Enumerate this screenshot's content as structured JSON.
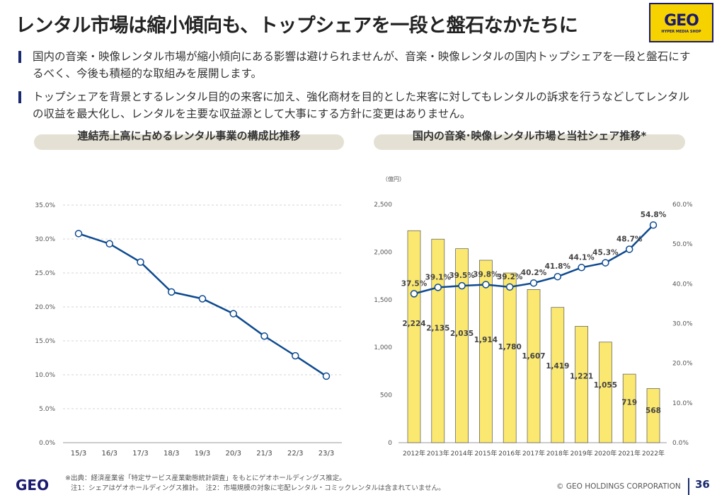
{
  "title": "レンタル市場は縮小傾向も、トップシェアを一段と盤石なかたちに",
  "logo": {
    "mark": "GEO",
    "sub": "HYPER MEDIA SHOP"
  },
  "bullets": [
    "国内の音楽・映像レンタル市場が縮小傾向にある影響は避けられませんが、音楽・映像レンタルの国内トップシェアを一段と盤石にするべく、今後も積極的な取組みを展開します。",
    "トップシェアを背景とするレンタル目的の来客に加え、強化商材を目的とした来客に対してもレンタルの訴求を行うなどしてレンタルの収益を最大化し、レンタルを主要な収益源として大事にする方針に変更はありません。"
  ],
  "sections": [
    "連結売上高に占めるレンタル事業の構成比推移",
    "国内の音楽･映像レンタル市場と当社シェア推移*"
  ],
  "chart_data": [
    {
      "type": "line",
      "categories": [
        "15/3",
        "16/3",
        "17/3",
        "18/3",
        "19/3",
        "20/3",
        "21/3",
        "22/3",
        "23/3"
      ],
      "values": [
        30.8,
        29.3,
        26.6,
        22.2,
        21.2,
        19.0,
        15.7,
        12.8,
        9.8
      ],
      "ylim": [
        0,
        35
      ],
      "yticks": [
        "0.0%",
        "5.0%",
        "10.0%",
        "15.0%",
        "20.0%",
        "25.0%",
        "30.0%",
        "35.0%"
      ],
      "grid": true,
      "color": "#0d4a8f"
    },
    {
      "type": "bar+line",
      "categories": [
        "2012年",
        "2013年",
        "2014年",
        "2015年",
        "2016年",
        "2017年",
        "2018年",
        "2019年",
        "2020年",
        "2021年",
        "2022年"
      ],
      "ylabel": "（億円）",
      "bars": {
        "values": [
          2224,
          2135,
          2035,
          1914,
          1780,
          1607,
          1419,
          1221,
          1055,
          719,
          568
        ],
        "labels": [
          "2,224",
          "2,135",
          "2,035",
          "1,914",
          "1,780",
          "1,607",
          "1,419",
          "1,221",
          "1,055",
          "719",
          "568"
        ],
        "color": "#fbe870"
      },
      "line": {
        "values": [
          37.5,
          39.1,
          39.5,
          39.8,
          39.2,
          40.2,
          41.8,
          44.1,
          45.3,
          48.7,
          54.8
        ],
        "labels": [
          "37.5%",
          "39.1%",
          "39.5%",
          "39.8%",
          "39.2%",
          "40.2%",
          "41.8%",
          "44.1%",
          "45.3%",
          "48.7%",
          "54.8%"
        ],
        "color": "#0d4a8f"
      },
      "ylim": [
        0,
        2500
      ],
      "yticks": [
        "0",
        "500",
        "1,000",
        "1,500",
        "2,000",
        "2,500"
      ],
      "y2lim": [
        0,
        60
      ],
      "y2ticks": [
        "0.0%",
        "10.0%",
        "20.0%",
        "30.0%",
        "40.0%",
        "50.0%",
        "60.0%"
      ]
    }
  ],
  "footer": {
    "source": "※出典：経済産業省「特定サービス産業動態統計調査」をもとにゲオホールディングス推定。",
    "notes": "注1：シェアはゲオホールディングス推計。　注2：市場規模の対象に宅配レンタル・コミックレンタルは含まれていません。",
    "copyright": "© GEO HOLDINGS CORPORATION",
    "page": "36",
    "logo": "GEO"
  }
}
